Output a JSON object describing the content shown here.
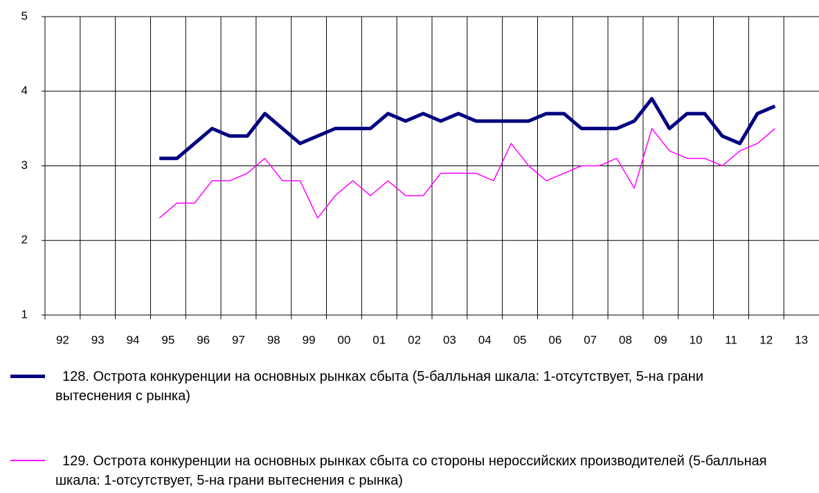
{
  "chart_data": {
    "type": "line",
    "categories": [
      "92",
      null,
      "93",
      null,
      "94",
      null,
      "95",
      null,
      "96",
      null,
      "97",
      null,
      "98",
      null,
      "99",
      null,
      "00",
      null,
      "01",
      null,
      "02",
      null,
      "03",
      null,
      "04",
      null,
      "05",
      null,
      "06",
      null,
      "07",
      null,
      "08",
      null,
      "09",
      null,
      "10",
      null,
      "11",
      null,
      "12",
      null,
      "13",
      null
    ],
    "series": [
      {
        "name": "128. Острота конкуренции на основных рынках сбыта (5-балльная шкала: 1-отсутствует, 5-на грани вытеснения с рынка)",
        "color": "#000080",
        "values": [
          null,
          null,
          null,
          null,
          null,
          null,
          3.1,
          3.1,
          3.3,
          3.5,
          3.4,
          3.4,
          3.7,
          3.5,
          3.3,
          3.4,
          3.5,
          3.5,
          3.5,
          3.7,
          3.6,
          3.7,
          3.6,
          3.7,
          3.6,
          3.6,
          3.6,
          3.6,
          3.7,
          3.7,
          3.5,
          3.5,
          3.5,
          3.6,
          3.9,
          3.5,
          3.7,
          3.7,
          3.4,
          3.3,
          3.7,
          3.8,
          null,
          null
        ]
      },
      {
        "name": "129. Острота конкуренции на основных рынках сбыта со стороны нероссийских производителей (5-балльная шкала: 1-отсутствует, 5-на грани вытеснения с рынка)",
        "color": "#ff00ff",
        "values": [
          null,
          null,
          null,
          null,
          null,
          null,
          2.3,
          2.5,
          2.5,
          2.8,
          2.8,
          2.9,
          3.1,
          2.8,
          2.8,
          2.3,
          2.6,
          2.8,
          2.6,
          2.8,
          2.6,
          2.6,
          2.9,
          2.9,
          2.9,
          2.8,
          3.3,
          3.0,
          2.8,
          2.9,
          3.0,
          3.0,
          3.1,
          2.7,
          3.5,
          3.2,
          3.1,
          3.1,
          3.0,
          3.2,
          3.3,
          3.5,
          null,
          null
        ]
      }
    ],
    "ylim": [
      1,
      5
    ],
    "yticks": [
      1,
      2,
      3,
      4,
      5
    ],
    "grid": true
  }
}
